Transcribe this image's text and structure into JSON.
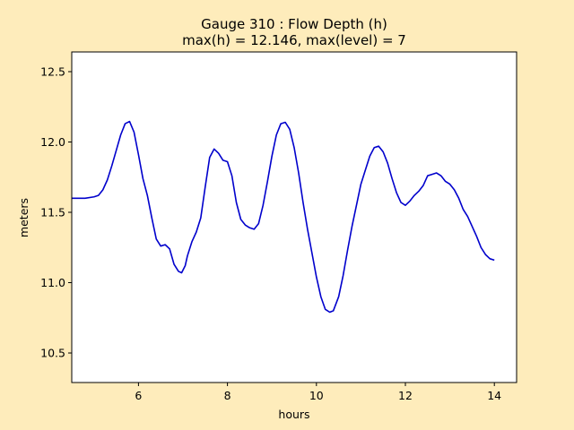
{
  "chart_data": {
    "type": "line",
    "title": "Gauge 310 : Flow Depth (h)",
    "subtitle": "max(h) =  12.146,    max(level) = 7",
    "xlabel": "hours",
    "ylabel": "meters",
    "xlim": [
      4.5,
      14.5
    ],
    "ylim": [
      10.29,
      12.64
    ],
    "grid": false,
    "legend": "none",
    "xticks": [
      6,
      8,
      10,
      12,
      14
    ],
    "xtick_labels": [
      "6",
      "8",
      "10",
      "12",
      "14"
    ],
    "yticks": [
      10.5,
      11.0,
      11.5,
      12.0,
      12.5
    ],
    "ytick_labels": [
      "10.5",
      "11.0",
      "11.5",
      "12.0",
      "12.5"
    ],
    "colors": {
      "line": "#0000cc",
      "plot_background": "#ffffff",
      "figure_background": "#feecbb"
    },
    "series": [
      {
        "x": [
          4.5,
          4.8,
          5.0,
          5.1,
          5.2,
          5.3,
          5.4,
          5.5,
          5.6,
          5.7,
          5.8,
          5.9,
          6.0,
          6.1,
          6.2,
          6.3,
          6.4,
          6.5,
          6.6,
          6.7,
          6.8,
          6.9,
          6.97,
          7.05,
          7.1,
          7.2,
          7.3,
          7.4,
          7.5,
          7.6,
          7.7,
          7.8,
          7.9,
          8.0,
          8.1,
          8.2,
          8.3,
          8.4,
          8.5,
          8.6,
          8.7,
          8.8,
          8.9,
          9.0,
          9.1,
          9.2,
          9.3,
          9.4,
          9.5,
          9.6,
          9.7,
          9.8,
          9.9,
          10.0,
          10.1,
          10.2,
          10.3,
          10.38,
          10.5,
          10.6,
          10.7,
          10.8,
          10.9,
          11.0,
          11.1,
          11.2,
          11.3,
          11.4,
          11.5,
          11.6,
          11.7,
          11.8,
          11.9,
          12.0,
          12.1,
          12.2,
          12.3,
          12.4,
          12.5,
          12.6,
          12.7,
          12.8,
          12.9,
          13.0,
          13.1,
          13.2,
          13.3,
          13.4,
          13.5,
          13.6,
          13.7,
          13.8,
          13.9,
          14.0
        ],
        "y": [
          11.6,
          11.6,
          11.61,
          11.62,
          11.66,
          11.73,
          11.83,
          11.94,
          12.05,
          12.13,
          12.146,
          12.07,
          11.91,
          11.74,
          11.62,
          11.46,
          11.31,
          11.26,
          11.27,
          11.24,
          11.13,
          11.08,
          11.07,
          11.12,
          11.19,
          11.29,
          11.36,
          11.46,
          11.68,
          11.89,
          11.95,
          11.92,
          11.87,
          11.86,
          11.76,
          11.57,
          11.45,
          11.41,
          11.39,
          11.38,
          11.42,
          11.55,
          11.72,
          11.9,
          12.05,
          12.13,
          12.14,
          12.09,
          11.96,
          11.78,
          11.57,
          11.38,
          11.21,
          11.04,
          10.9,
          10.81,
          10.79,
          10.8,
          10.9,
          11.05,
          11.23,
          11.4,
          11.55,
          11.7,
          11.8,
          11.9,
          11.96,
          11.97,
          11.93,
          11.85,
          11.74,
          11.64,
          11.57,
          11.55,
          11.58,
          11.62,
          11.65,
          11.69,
          11.76,
          11.77,
          11.78,
          11.76,
          11.72,
          11.7,
          11.66,
          11.6,
          11.52,
          11.47,
          11.4,
          11.33,
          11.25,
          11.2,
          11.17,
          11.16
        ]
      }
    ]
  }
}
